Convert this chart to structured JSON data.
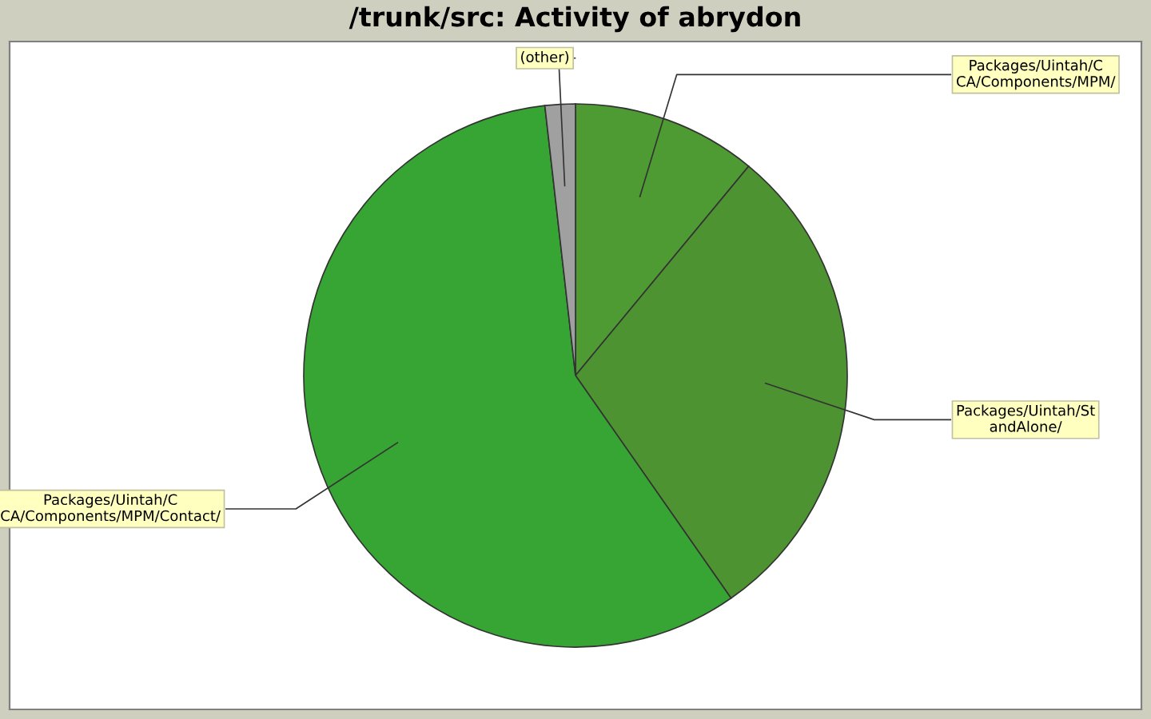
{
  "chart_data": {
    "type": "pie",
    "title": "/trunk/src: Activity of abrydon",
    "categories": [
      "Packages/Uintah/C\nCA/Components/MPM/",
      "Packages/Uintah/St\nandAlone/",
      "Packages/Uintah/C\nCA/Components/MPM/Contact/",
      "(other)"
    ],
    "values": [
      11.0,
      29.3,
      57.9,
      1.8
    ],
    "colors": [
      "#4e9a33",
      "#4e9332",
      "#37a534",
      "#a0a0a0"
    ]
  }
}
